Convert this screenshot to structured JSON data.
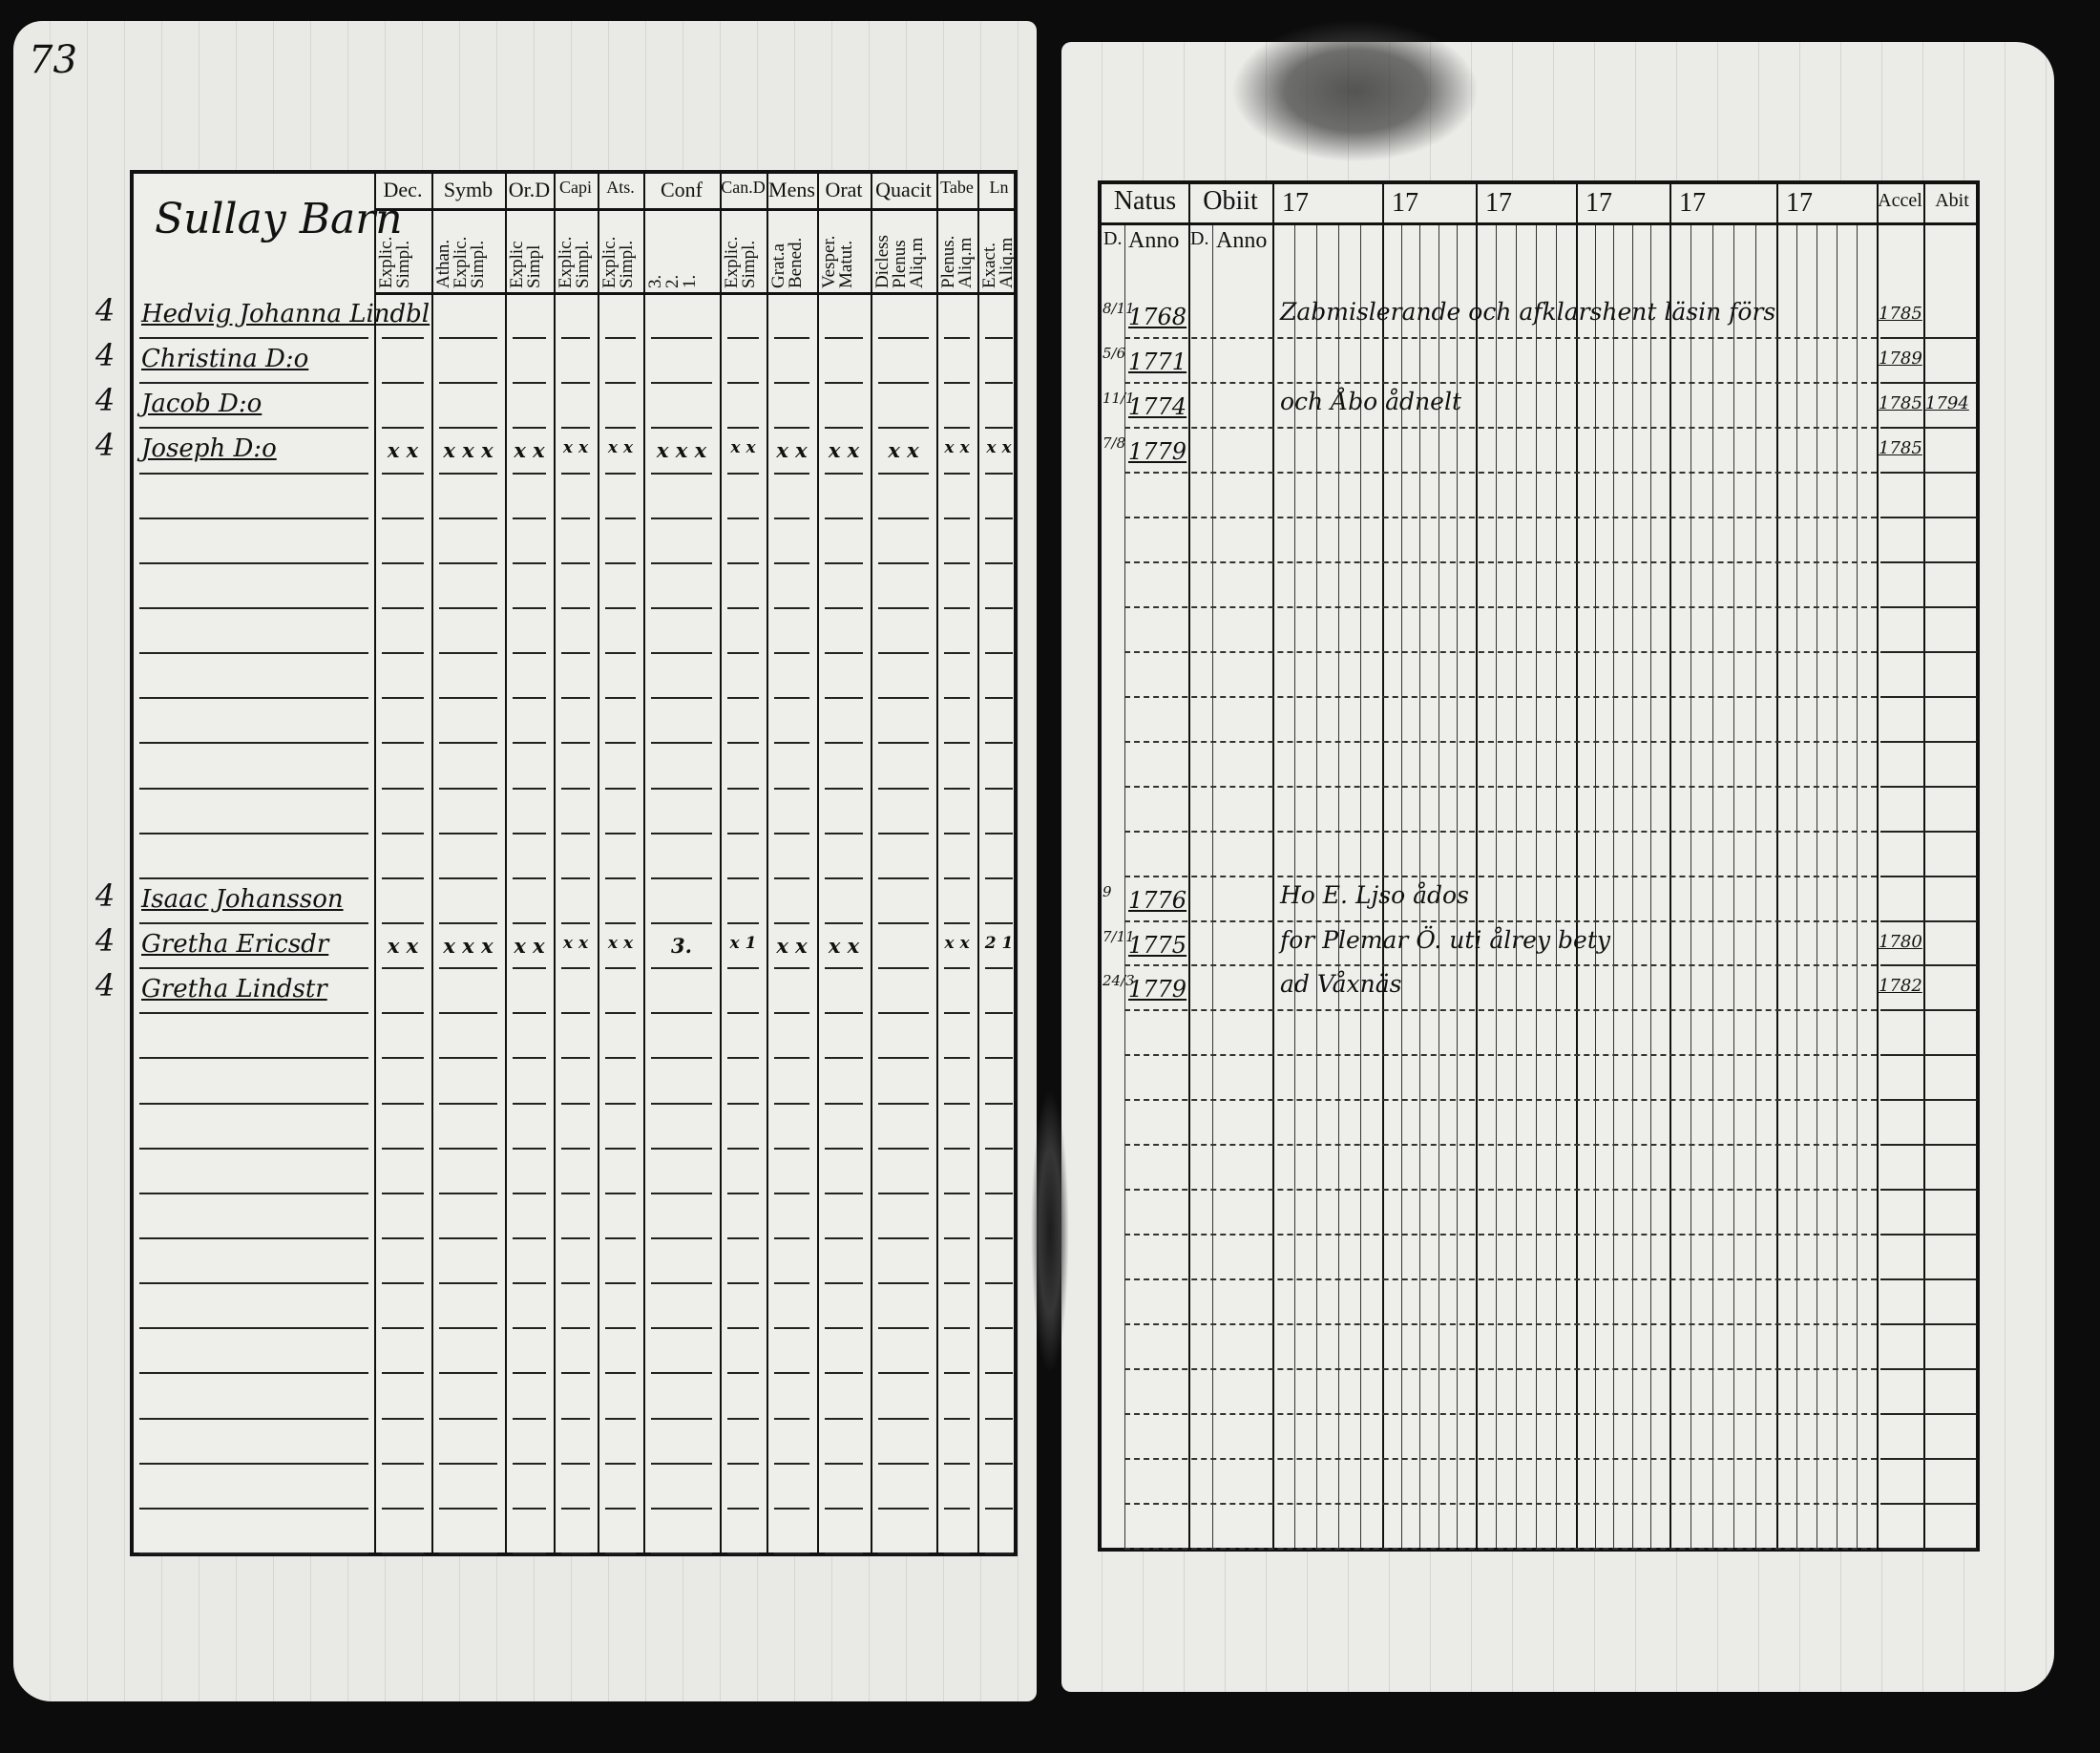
{
  "page_number": "73",
  "left_page": {
    "title": "Sullay Barn",
    "columns": [
      {
        "head": "Dec.",
        "sub": "Explic.\nSimpl."
      },
      {
        "head": "Symb",
        "sub": "Athan.\nExplic.\nSimpl."
      },
      {
        "head": "Or.D",
        "sub": "Explic\nSimpl"
      },
      {
        "head": "Capi",
        "sub": "Explic.\nSimpl."
      },
      {
        "head": "Ats.",
        "sub": "Explic.\nSimpl."
      },
      {
        "head": "Conf",
        "sub": "3.\n2.\n1."
      },
      {
        "head": "Can.D",
        "sub": "Explic.\nSimpl."
      },
      {
        "head": "Mens",
        "sub": "Grat.a\nBened."
      },
      {
        "head": "Orat",
        "sub": "Vesper.\nMatut."
      },
      {
        "head": "Quacit",
        "sub": "Dicless\nPlenus\nAliq.m"
      },
      {
        "head": "Tabe",
        "sub": "Plenus.\nAliq.m"
      },
      {
        "head": "Ln",
        "sub": "Exact.\nAliq.m"
      }
    ],
    "entries": [
      {
        "row": 0,
        "margin": "4",
        "name": "Hedvig Johanna Lindbl",
        "marks": []
      },
      {
        "row": 1,
        "margin": "4",
        "name": "Christina D:o",
        "marks": []
      },
      {
        "row": 2,
        "margin": "4",
        "name": "Jacob D:o",
        "marks": []
      },
      {
        "row": 3,
        "margin": "4",
        "name": "Joseph D:o",
        "marks": [
          "x x",
          "x x x",
          "x x",
          "x x",
          "x x",
          "x x x",
          "x x",
          "x x",
          "x x",
          "x x",
          "x x",
          "x x"
        ]
      },
      {
        "row": 13,
        "margin": "4",
        "name": "Isaac Johansson",
        "marks": []
      },
      {
        "row": 14,
        "margin": "4",
        "name": "Gretha Ericsdr",
        "marks": [
          "x x",
          "x x x",
          "x x",
          "x x",
          "x x",
          "3.",
          "x 1",
          "x x",
          "x x",
          "",
          "x x",
          "2 1"
        ]
      },
      {
        "row": 15,
        "margin": "4",
        "name": "Gretha Lindstr",
        "marks": []
      }
    ]
  },
  "right_page": {
    "headers": {
      "natus": "Natus",
      "obiit": "Obiit",
      "day": "D.",
      "anno": "Anno",
      "years": [
        "17",
        "17",
        "17",
        "17",
        "17",
        "17"
      ],
      "accel": "Accel",
      "abit": "Abit"
    },
    "entries": [
      {
        "row": 0,
        "day": "8/11",
        "natus_anno": "1768",
        "note": "Zabmislerande och afklarshent läsin förs",
        "accel": "1785",
        "abit": ""
      },
      {
        "row": 1,
        "day": "5/6",
        "natus_anno": "1771",
        "note": "",
        "accel": "1789",
        "abit": ""
      },
      {
        "row": 2,
        "day": "11/1",
        "natus_anno": "1774",
        "note": "och Åbo ådnelt",
        "accel": "1785",
        "abit": "1794"
      },
      {
        "row": 3,
        "day": "7/8",
        "natus_anno": "1779",
        "note": "",
        "accel": "1785",
        "abit": ""
      },
      {
        "row": 13,
        "day": "9",
        "natus_anno": "1776",
        "note": "Ho E. Ljso ådos",
        "accel": "",
        "abit": ""
      },
      {
        "row": 14,
        "day": "7/11",
        "natus_anno": "1775",
        "note": "for Plemar Ö. uti ålrey bety",
        "accel": "1780",
        "abit": ""
      },
      {
        "row": 15,
        "day": "24/3",
        "natus_anno": "1779",
        "note": "ad Våxnäs",
        "accel": "1782",
        "abit": ""
      }
    ]
  }
}
